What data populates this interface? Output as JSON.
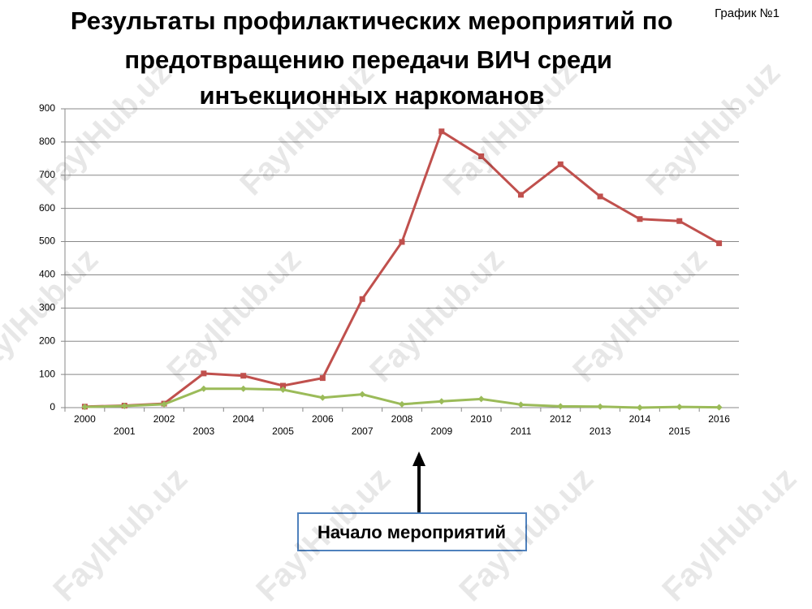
{
  "chart_data": {
    "type": "line",
    "title": "Результаты профилактических мероприятий по предотвращению передачи ВИЧ среди инъекционных наркоманов",
    "chart_label": "График №1",
    "annotation": "Начало мероприятий",
    "watermark": "FaylHub.uz",
    "categories": [
      "2000",
      "2001",
      "2002",
      "2003",
      "2004",
      "2005",
      "2006",
      "2007",
      "2008",
      "2009",
      "2010",
      "2011",
      "2012",
      "2013",
      "2014",
      "2015",
      "2016"
    ],
    "series": [
      {
        "color": "#c0504d",
        "values": [
          3,
          6,
          12,
          103,
          96,
          66,
          89,
          327,
          499,
          832,
          757,
          641,
          733,
          636,
          568,
          562,
          495
        ]
      },
      {
        "color": "#9bbb59",
        "values": [
          2,
          5,
          10,
          57,
          57,
          54,
          30,
          40,
          10,
          19,
          26,
          9,
          4,
          3,
          0,
          2,
          1
        ]
      }
    ],
    "ylim": [
      0,
      900
    ],
    "yticks": [
      0,
      100,
      200,
      300,
      400,
      500,
      600,
      700,
      800,
      900
    ],
    "grid": true
  }
}
